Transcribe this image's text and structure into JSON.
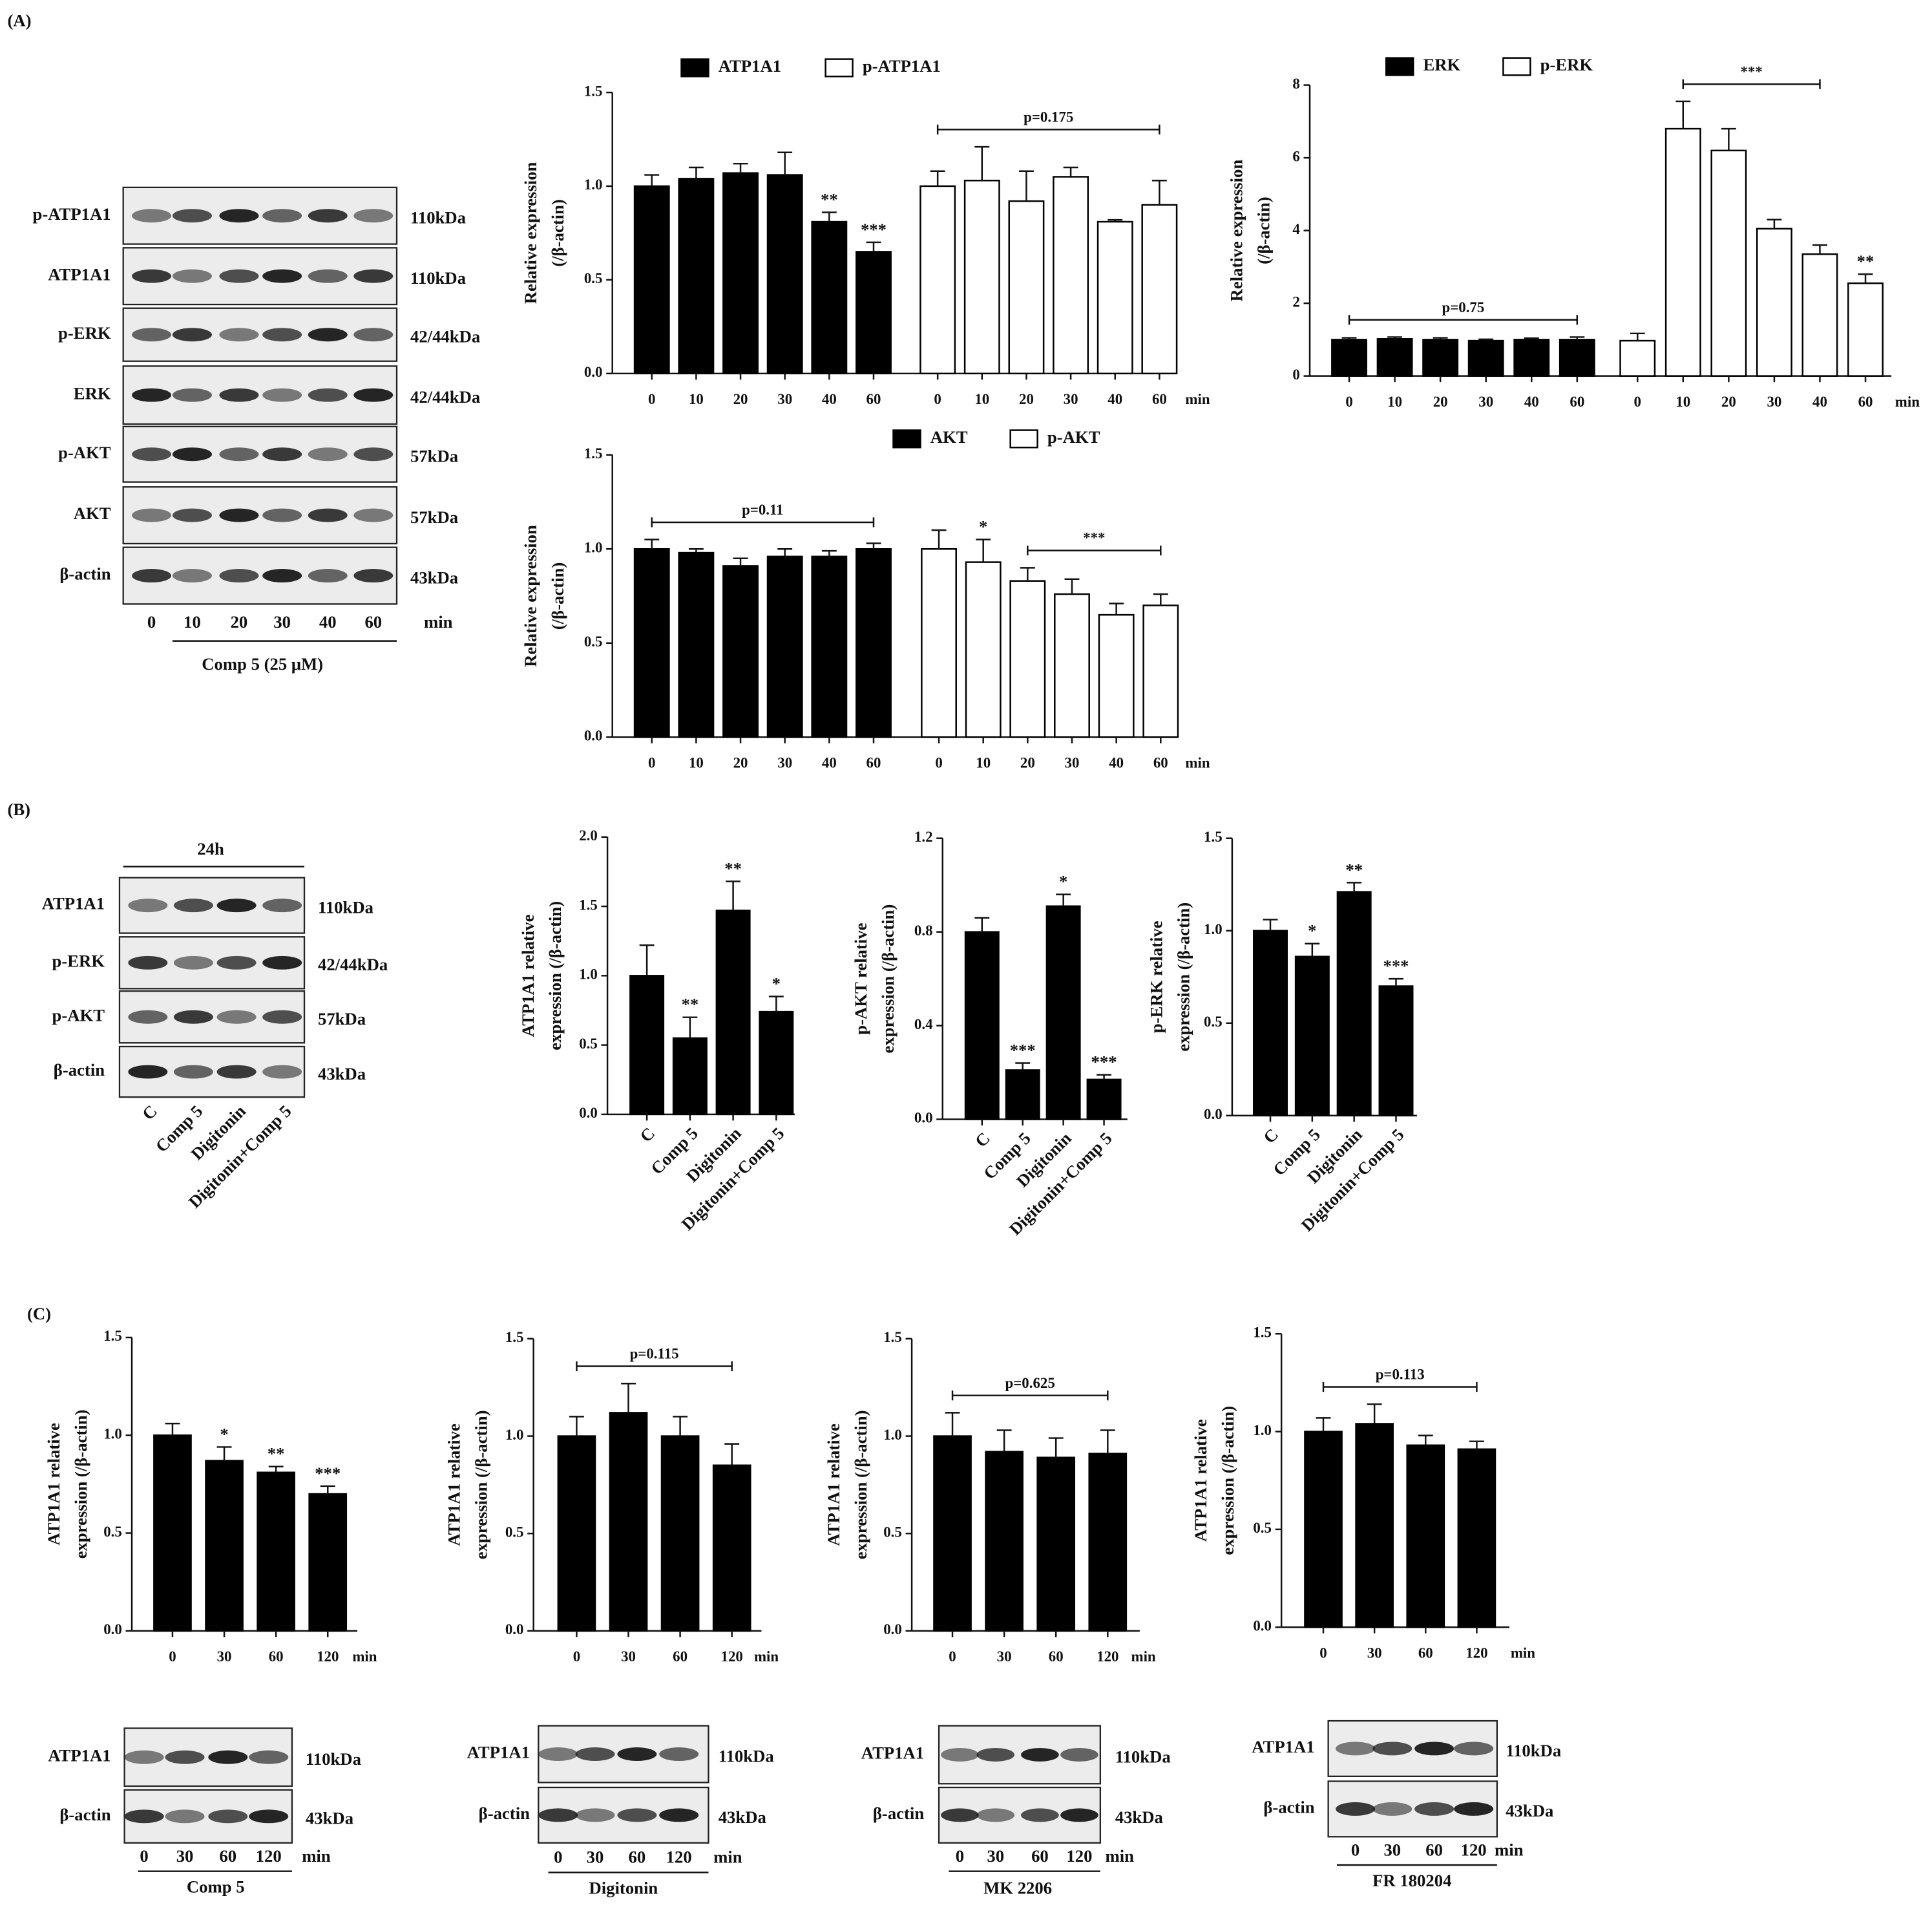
{
  "panels": [
    "(A)",
    "(B)",
    "(C)"
  ],
  "blots": [
    {
      "rows": [
        {
          "label": "p-ATP1A1",
          "size": "110kDa"
        },
        {
          "label": "ATP1A1",
          "size": "110kDa"
        },
        {
          "label": "p-ERK",
          "size": "42/44kDa"
        },
        {
          "label": "ERK",
          "size": "42/44kDa"
        },
        {
          "label": "p-AKT",
          "size": "57kDa"
        },
        {
          "label": "AKT",
          "size": "57kDa"
        },
        {
          "label": "β-actin",
          "size": "43kDa"
        }
      ],
      "lanes": [
        "0",
        "10",
        "20",
        "30",
        "40",
        "60"
      ],
      "unit": "min",
      "caption": "Comp 5 (25 μM)"
    },
    {
      "header": "24h",
      "rows": [
        {
          "label": "ATP1A1",
          "size": "110kDa"
        },
        {
          "label": "p-ERK",
          "size": "42/44kDa"
        },
        {
          "label": "p-AKT",
          "size": "57kDa"
        },
        {
          "label": "β-actin",
          "size": "43kDa"
        }
      ],
      "lanes": [
        "C",
        "Comp 5",
        "Digitonin",
        "Digitonin+Comp 5"
      ]
    },
    {
      "rows": [
        {
          "label": "ATP1A1",
          "size": "110kDa"
        },
        {
          "label": "β-actin",
          "size": "43kDa"
        }
      ],
      "lanes": [
        "0",
        "30",
        "60",
        "120"
      ],
      "unit": "min",
      "caption": "Comp 5"
    },
    {
      "rows": [
        {
          "label": "ATP1A1",
          "size": "110kDa"
        },
        {
          "label": "β-actin",
          "size": "43kDa"
        }
      ],
      "lanes": [
        "0",
        "30",
        "60",
        "120"
      ],
      "unit": "min",
      "caption": "Digitonin"
    },
    {
      "rows": [
        {
          "label": "ATP1A1",
          "size": "110kDa"
        },
        {
          "label": "β-actin",
          "size": "43kDa"
        }
      ],
      "lanes": [
        "0",
        "30",
        "60",
        "120"
      ],
      "unit": "min",
      "caption": "MK 2206"
    },
    {
      "rows": [
        {
          "label": "ATP1A1",
          "size": "110kDa"
        },
        {
          "label": "β-actin",
          "size": "43kDa"
        }
      ],
      "lanes": [
        "0",
        "30",
        "60",
        "120"
      ],
      "unit": "min",
      "caption": "FR 180204"
    }
  ],
  "chart_data": [
    {
      "type": "bar",
      "ylabel": [
        "Relative expression",
        "(/β-actin)"
      ],
      "xlabel": "min",
      "categories": [
        "0",
        "10",
        "20",
        "30",
        "40",
        "60"
      ],
      "series": [
        {
          "name": "ATP1A1",
          "color": "#000000",
          "values": [
            1.0,
            1.04,
            1.07,
            1.06,
            0.81,
            0.65
          ],
          "errors": [
            0.06,
            0.06,
            0.05,
            0.12,
            0.05,
            0.05
          ],
          "annotations": [
            null,
            null,
            null,
            null,
            "**",
            "***"
          ]
        },
        {
          "name": "p-ATP1A1",
          "color": "#ffffff",
          "values": [
            1.0,
            1.03,
            0.92,
            1.05,
            0.81,
            0.9
          ],
          "errors": [
            0.08,
            0.18,
            0.16,
            0.05,
            0.01,
            0.13
          ]
        }
      ],
      "brackets": [
        {
          "label": "p=0.175",
          "series": 1,
          "from": 0,
          "to": 5
        }
      ],
      "ylim": [
        0,
        1.5
      ],
      "yticks": [
        {
          "value": 0,
          "label": "0.0"
        },
        0.5,
        {
          "value": 1,
          "label": "1.0"
        },
        1.5
      ]
    },
    {
      "type": "bar",
      "ylabel": [
        "Relative expression",
        "(/β-actin)"
      ],
      "xlabel": "min",
      "categories": [
        "0",
        "10",
        "20",
        "30",
        "40",
        "60"
      ],
      "series": [
        {
          "name": "ERK",
          "color": "#000000",
          "values": [
            1.0,
            1.02,
            1.0,
            0.97,
            1.0,
            1.0
          ],
          "errors": [
            0.05,
            0.05,
            0.05,
            0.04,
            0.04,
            0.07
          ]
        },
        {
          "name": "p-ERK",
          "color": "#ffffff",
          "values": [
            0.97,
            6.8,
            6.2,
            4.05,
            3.35,
            2.55
          ],
          "errors": [
            0.2,
            0.75,
            0.6,
            0.25,
            0.25,
            0.25
          ],
          "annotations": [
            null,
            null,
            null,
            null,
            null,
            "**"
          ]
        }
      ],
      "brackets": [
        {
          "label": "p=0.75",
          "series": 0,
          "from": 0,
          "to": 5
        },
        {
          "label": "***",
          "series": 1,
          "from": 1,
          "to": 4
        }
      ],
      "ylim": [
        0,
        8
      ],
      "yticks": [
        0,
        2,
        4,
        6,
        8
      ]
    },
    {
      "type": "bar",
      "ylabel": [
        "Relative expression",
        "(/β-actin)"
      ],
      "xlabel": "min",
      "categories": [
        "0",
        "10",
        "20",
        "30",
        "40",
        "60"
      ],
      "series": [
        {
          "name": "AKT",
          "color": "#000000",
          "values": [
            1.0,
            0.98,
            0.91,
            0.96,
            0.96,
            1.0
          ],
          "errors": [
            0.05,
            0.02,
            0.04,
            0.04,
            0.03,
            0.03
          ]
        },
        {
          "name": "p-AKT",
          "color": "#ffffff",
          "values": [
            1.0,
            0.93,
            0.83,
            0.76,
            0.65,
            0.7
          ],
          "errors": [
            0.1,
            0.12,
            0.07,
            0.08,
            0.06,
            0.06
          ],
          "annotations": [
            null,
            "*",
            null,
            null,
            null,
            null
          ]
        }
      ],
      "brackets": [
        {
          "label": "p=0.11",
          "series": 0,
          "from": 0,
          "to": 5
        },
        {
          "label": "***",
          "series": 1,
          "from": 2,
          "to": 5
        }
      ],
      "ylim": [
        0,
        1.5
      ],
      "yticks": [
        {
          "value": 0,
          "label": "0.0"
        },
        0.5,
        {
          "value": 1,
          "label": "1.0"
        },
        1.5
      ]
    },
    {
      "type": "bar",
      "ylabel": [
        "ATP1A1 relative",
        "expression (/β-actin)"
      ],
      "categories": [
        "C",
        "Comp 5",
        "Digitonin",
        "Digitonin+Comp 5"
      ],
      "color": "#000000",
      "values": [
        1.0,
        0.55,
        1.47,
        0.74
      ],
      "errors": [
        0.22,
        0.15,
        0.21,
        0.11
      ],
      "annotations": [
        null,
        "**",
        "**",
        "*"
      ],
      "ylim": [
        0,
        2
      ],
      "yticks": [
        {
          "value": 0,
          "label": "0.0"
        },
        0.5,
        {
          "value": 1,
          "label": "1.0"
        },
        1.5,
        {
          "value": 2,
          "label": "2.0"
        }
      ]
    },
    {
      "type": "bar",
      "ylabel": [
        "p-AKT relative",
        "expression (/β-actin)"
      ],
      "categories": [
        "C",
        "Comp 5",
        "Digitonin",
        "Digitonin+Comp 5"
      ],
      "color": "#000000",
      "values": [
        0.8,
        0.21,
        0.91,
        0.17
      ],
      "errors": [
        0.06,
        0.03,
        0.05,
        0.02
      ],
      "annotations": [
        null,
        "***",
        "*",
        "***"
      ],
      "ylim": [
        0,
        1.2
      ],
      "yticks": [
        {
          "value": 0,
          "label": "0.0"
        },
        0.4,
        0.8,
        1.2
      ]
    },
    {
      "type": "bar",
      "ylabel": [
        "p-ERK relative",
        "expression (/β-actin)"
      ],
      "categories": [
        "C",
        "Comp 5",
        "Digitonin",
        "Digitonin+Comp 5"
      ],
      "color": "#000000",
      "values": [
        1.0,
        0.86,
        1.21,
        0.7
      ],
      "errors": [
        0.06,
        0.07,
        0.05,
        0.04
      ],
      "annotations": [
        null,
        "*",
        "**",
        "***"
      ],
      "ylim": [
        0,
        1.5
      ],
      "yticks": [
        {
          "value": 0,
          "label": "0.0"
        },
        0.5,
        {
          "value": 1,
          "label": "1.0"
        },
        1.5
      ]
    },
    {
      "type": "bar",
      "ylabel": [
        "ATP1A1 relative",
        "expression (/β-actin)"
      ],
      "xlabel": "min",
      "categories": [
        "0",
        "30",
        "60",
        "120"
      ],
      "color": "#000000",
      "values": [
        1.0,
        0.87,
        0.81,
        0.7
      ],
      "errors": [
        0.06,
        0.07,
        0.03,
        0.04
      ],
      "annotations": [
        null,
        "*",
        "**",
        "***"
      ],
      "ylim": [
        0,
        1.5
      ],
      "yticks": [
        {
          "value": 0,
          "label": "0.0"
        },
        0.5,
        {
          "value": 1,
          "label": "1.0"
        },
        1.5
      ]
    },
    {
      "type": "bar",
      "ylabel": [
        "ATP1A1 relative",
        "expression (/β-actin)"
      ],
      "xlabel": "min",
      "categories": [
        "0",
        "30",
        "60",
        "120"
      ],
      "color": "#000000",
      "values": [
        1.0,
        1.12,
        1.0,
        0.85
      ],
      "errors": [
        0.1,
        0.15,
        0.1,
        0.11
      ],
      "brackets": [
        {
          "label": "p=0.115",
          "from": 0,
          "to": 3
        }
      ],
      "ylim": [
        0,
        1.5
      ],
      "yticks": [
        {
          "value": 0,
          "label": "0.0"
        },
        0.5,
        {
          "value": 1,
          "label": "1.0"
        },
        1.5
      ]
    },
    {
      "type": "bar",
      "ylabel": [
        "ATP1A1 relative",
        "expression (/β-actin)"
      ],
      "xlabel": "min",
      "categories": [
        "0",
        "30",
        "60",
        "120"
      ],
      "color": "#000000",
      "values": [
        1.0,
        0.92,
        0.89,
        0.91
      ],
      "errors": [
        0.12,
        0.11,
        0.1,
        0.12
      ],
      "brackets": [
        {
          "label": "p=0.625",
          "from": 0,
          "to": 3
        }
      ],
      "ylim": [
        0,
        1.5
      ],
      "yticks": [
        {
          "value": 0,
          "label": "0.0"
        },
        0.5,
        {
          "value": 1,
          "label": "1.0"
        },
        1.5
      ]
    },
    {
      "type": "bar",
      "ylabel": [
        "ATP1A1 relative",
        "expression (/β-actin)"
      ],
      "xlabel": "min",
      "categories": [
        "0",
        "30",
        "60",
        "120"
      ],
      "color": "#000000",
      "values": [
        1.0,
        1.04,
        0.93,
        0.91
      ],
      "errors": [
        0.07,
        0.1,
        0.05,
        0.04
      ],
      "brackets": [
        {
          "label": "p=0.113",
          "from": 0,
          "to": 3
        }
      ],
      "ylim": [
        0,
        1.5
      ],
      "yticks": [
        {
          "value": 0,
          "label": "0.0"
        },
        0.5,
        {
          "value": 1,
          "label": "1.0"
        },
        1.5
      ]
    }
  ]
}
